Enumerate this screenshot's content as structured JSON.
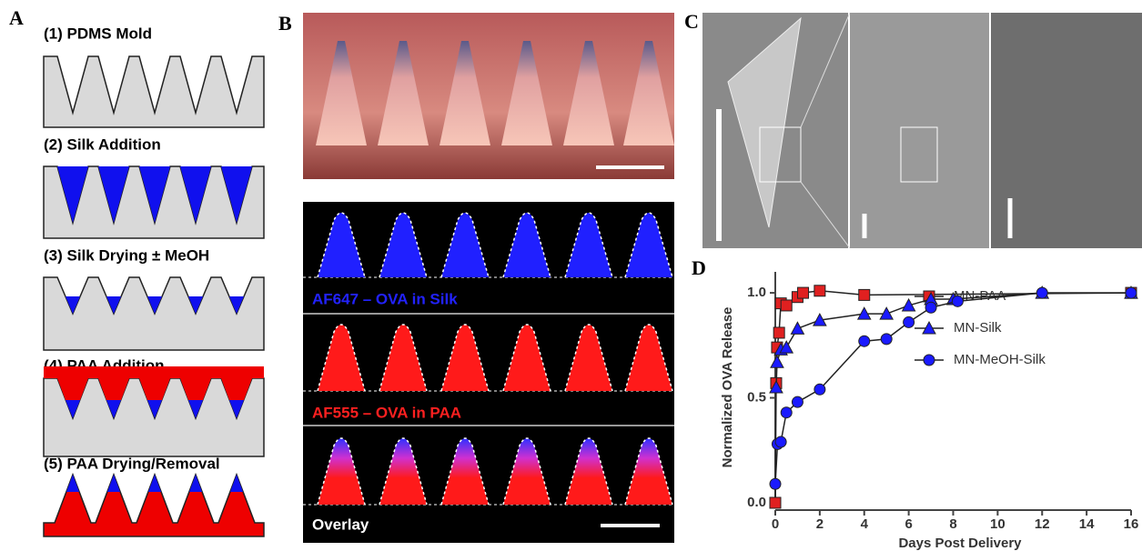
{
  "panels": {
    "A": {
      "label": "A",
      "steps": [
        "(1) PDMS Mold",
        "(2) Silk Addition",
        "(3) Silk Drying ± MeOH",
        "(4) PAA Addition",
        "(5) PAA Drying/Removal"
      ]
    },
    "B": {
      "label": "B",
      "strips": [
        "AF647 – OVA in Silk",
        "AF555 – OVA in PAA",
        "Overlay"
      ]
    },
    "C": {
      "label": "C"
    },
    "D": {
      "label": "D"
    }
  },
  "chart_data": {
    "type": "line",
    "xlabel": "Days Post Delivery",
    "ylabel": "Normalized OVA Release",
    "xlim": [
      0,
      16
    ],
    "ylim": [
      0,
      1.1
    ],
    "xticks": [
      0,
      2,
      4,
      6,
      8,
      10,
      12,
      14,
      16
    ],
    "yticks": [
      {
        "value": 0,
        "label": "0.0"
      },
      {
        "value": 0.5,
        "label": "0.5"
      },
      {
        "value": 1,
        "label": "1.0"
      }
    ],
    "series": [
      {
        "name": "MN-PAA",
        "color": "#e02020",
        "marker": "square",
        "x": [
          0,
          0.04,
          0.08,
          0.17,
          0.25,
          0.5,
          1,
          1.25,
          2,
          4,
          16
        ],
        "values": [
          0,
          0.57,
          0.74,
          0.81,
          0.95,
          0.94,
          0.98,
          1.0,
          1.01,
          0.99,
          1.0
        ]
      },
      {
        "name": "MN-Silk",
        "color": "#1a1aff",
        "marker": "triangle",
        "x": [
          0.04,
          0.08,
          0.25,
          0.5,
          1,
          2,
          4,
          5,
          6,
          7,
          8,
          12,
          16
        ],
        "values": [
          0.55,
          0.67,
          0.73,
          0.74,
          0.83,
          0.87,
          0.9,
          0.9,
          0.94,
          0.97,
          0.97,
          1.0,
          1.0
        ]
      },
      {
        "name": "MN-MeOH-Silk",
        "color": "#1a1aff",
        "marker": "circle",
        "x": [
          0,
          0.1,
          0.25,
          0.5,
          1,
          2,
          4,
          5,
          6,
          7,
          8.2,
          12,
          16
        ],
        "values": [
          0.09,
          0.28,
          0.29,
          0.43,
          0.48,
          0.54,
          0.77,
          0.78,
          0.86,
          0.93,
          0.96,
          1.0,
          1.0
        ]
      }
    ]
  }
}
